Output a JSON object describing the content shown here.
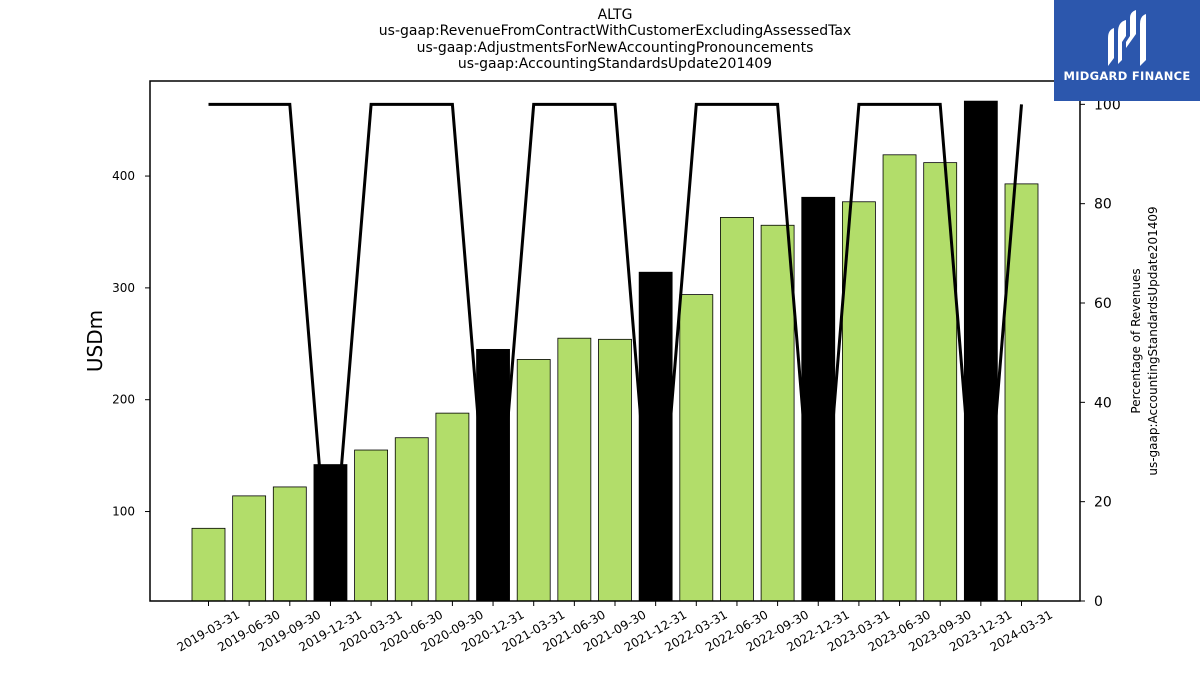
{
  "title_lines": [
    "ALTG",
    "us-gaap:RevenueFromContractWithCustomerExcludingAssessedTax",
    "us-gaap:AdjustmentsForNewAccountingPronouncements",
    "us-gaap:AccountingStandardsUpdate201409"
  ],
  "logo": {
    "text": "MIDGARD FINANCE"
  },
  "chart_data": {
    "type": "bar",
    "categories": [
      "2019-03-31",
      "2019-06-30",
      "2019-09-30",
      "2019-12-31",
      "2020-03-31",
      "2020-06-30",
      "2020-09-30",
      "2020-12-31",
      "2021-03-31",
      "2021-06-30",
      "2021-09-30",
      "2021-12-31",
      "2022-03-31",
      "2022-06-30",
      "2022-09-30",
      "2022-12-31",
      "2023-03-31",
      "2023-06-30",
      "2023-09-30",
      "2023-12-31",
      "2024-03-31"
    ],
    "series": [
      {
        "type": "bar",
        "axis": "left",
        "values": [
          85,
          114,
          122,
          142,
          155,
          166,
          188,
          245,
          236,
          255,
          254,
          314,
          294,
          363,
          356,
          381,
          377,
          419,
          412,
          467,
          393
        ],
        "colors": [
          "#b2dd6a",
          "#b2dd6a",
          "#b2dd6a",
          "#000000",
          "#b2dd6a",
          "#b2dd6a",
          "#b2dd6a",
          "#000000",
          "#b2dd6a",
          "#b2dd6a",
          "#b2dd6a",
          "#000000",
          "#b2dd6a",
          "#b2dd6a",
          "#b2dd6a",
          "#000000",
          "#b2dd6a",
          "#b2dd6a",
          "#b2dd6a",
          "#000000",
          "#b2dd6a"
        ]
      },
      {
        "type": "line",
        "axis": "right",
        "color": "#000000",
        "values": [
          100,
          100,
          100,
          0,
          100,
          100,
          100,
          0,
          100,
          100,
          100,
          0,
          100,
          100,
          100,
          0,
          100,
          100,
          100,
          0,
          100
        ]
      }
    ],
    "ylabel": "USDm",
    "y2label_lines": [
      "Percentage of Revenues",
      "us-gaap:AccountingStandardsUpdate201409"
    ],
    "ylim": [
      20,
      485
    ],
    "y2lim": [
      0,
      104.7
    ],
    "yticks": [
      100,
      200,
      300,
      400
    ],
    "y2ticks": [
      0,
      20,
      40,
      60,
      80,
      100
    ]
  }
}
